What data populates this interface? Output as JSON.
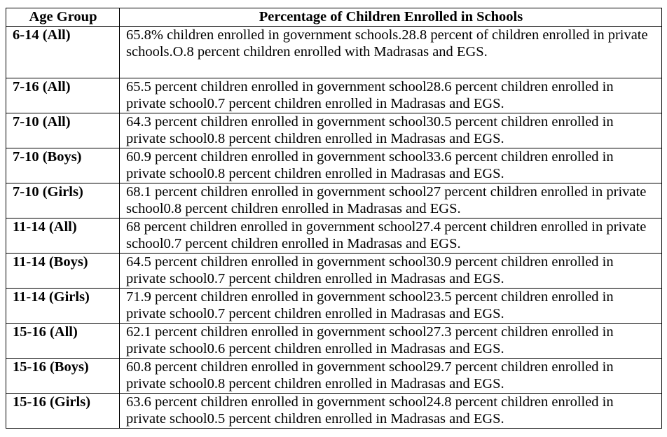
{
  "table": {
    "headers": {
      "age_group": "Age Group",
      "percentage": "Percentage of Children Enrolled in Schools"
    },
    "rows": [
      {
        "age": "6-14 (All)",
        "desc": "65.8% children enrolled in government schools.28.8 percent of children enrolled in private schools.O.8 percent children enrolled with Madrasas and EGS."
      },
      {
        "age": "7-16 (All)",
        "desc": "65.5 percent children enrolled in government school28.6 percent children enrolled in private school0.7 percent children enrolled in Madrasas and EGS."
      },
      {
        "age": "7-10 (All)",
        "desc": "64.3 percent children enrolled in government school30.5 percent children enrolled in private school0.8 percent children enrolled in Madrasas and EGS."
      },
      {
        "age": "7-10 (Boys)",
        "desc": "60.9 percent children enrolled in government school33.6 percent children enrolled in private school0.8 percent children enrolled in Madrasas and EGS."
      },
      {
        "age": "7-10 (Girls)",
        "desc": "68.1 percent children enrolled in government school27 percent children enrolled in private school0.8 percent children enrolled in Madrasas and EGS."
      },
      {
        "age": "11-14 (All)",
        "desc": "68 percent children enrolled in government school27.4 percent children enrolled in private school0.7 percent children enrolled in Madrasas and EGS."
      },
      {
        "age": "11-14 (Boys)",
        "desc": "64.5 percent children enrolled in government school30.9 percent children enrolled in private school0.7 percent children enrolled in Madrasas and EGS."
      },
      {
        "age": "11-14 (Girls)",
        "desc": "71.9 percent children enrolled in government school23.5 percent children enrolled in private school0.7 percent children enrolled in Madrasas and EGS."
      },
      {
        "age": "15-16 (All)",
        "desc": "62.1 percent children enrolled in government school27.3 percent children enrolled in private school0.6 percent children enrolled in Madrasas and EGS."
      },
      {
        "age": "15-16 (Boys)",
        "desc": "60.8 percent children enrolled in government school29.7 percent children enrolled in private school0.8 percent children enrolled in Madrasas and EGS."
      },
      {
        "age": "15-16 (Girls)",
        "desc": "63.6 percent children enrolled in government school24.8 percent children enrolled in private school0.5 percent children enrolled in Madrasas and EGS."
      }
    ]
  }
}
